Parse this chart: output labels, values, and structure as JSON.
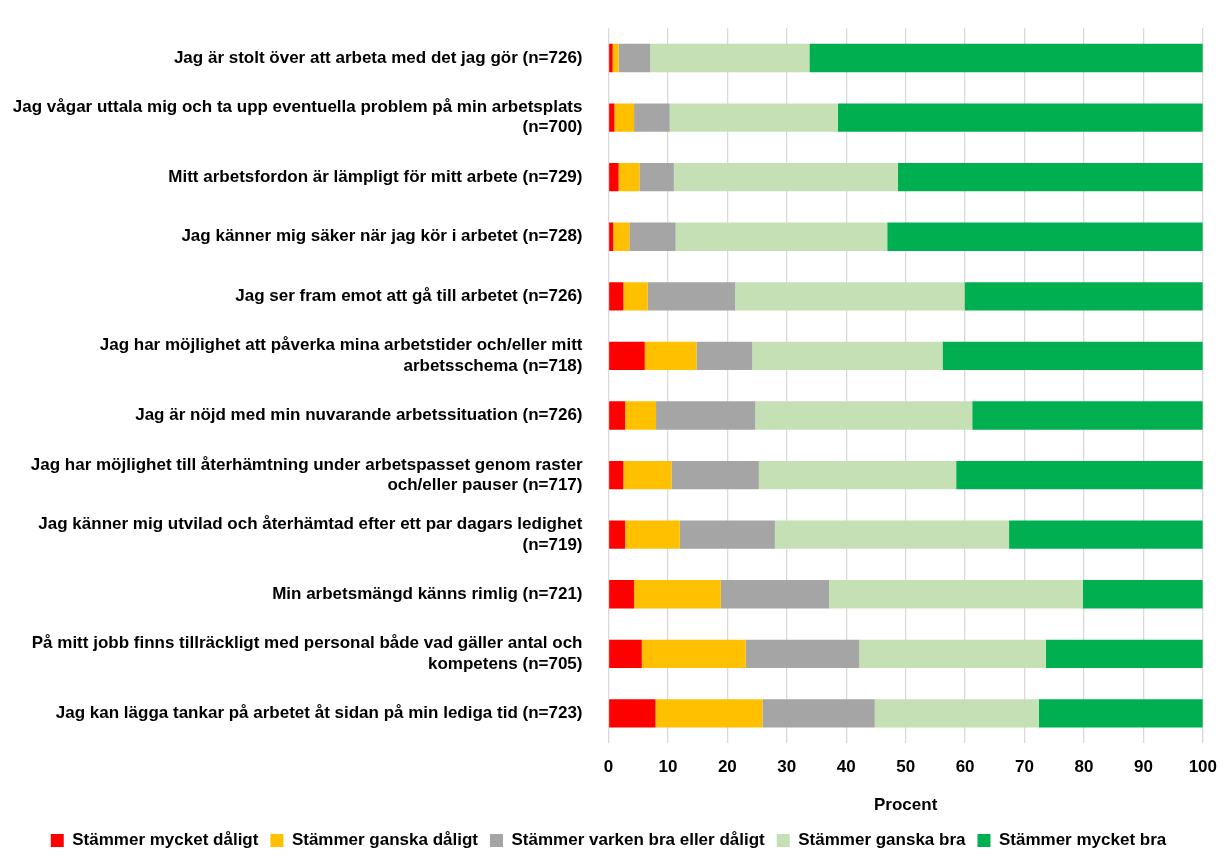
{
  "chart_data": {
    "type": "bar",
    "orientation": "horizontal",
    "stacked": true,
    "xlabel": "Procent",
    "categories": [
      "Jag är stolt över att arbeta med det jag gör (n=726)",
      "Jag vågar uttala mig och ta upp eventuella problem på min arbetsplats (n=700)",
      "Mitt arbetsfordon är lämpligt för mitt arbete (n=729)",
      "Jag känner mig säker när jag kör i arbetet (n=728)",
      "Jag ser fram emot att gå till arbetet (n=726)",
      "Jag har möjlighet att påverka mina arbetstider och/eller mitt arbetsschema (n=718)",
      "Jag är nöjd med min nuvarande arbetssituation (n=726)",
      "Jag har möjlighet till återhämtning under arbetspasset genom raster och/eller pauser (n=717)",
      "Jag känner mig utvilad och återhämtad efter ett par dagars ledighet (n=719)",
      "Min arbetsmängd känns rimlig (n=721)",
      "På mitt jobb finns tillräckligt med personal både vad gäller antal och kompetens (n=705)",
      "Jag kan lägga tankar på arbetet åt sidan på min lediga tid (n=723)"
    ],
    "series": [
      {
        "name": "Stämmer mycket dåligt",
        "color": "#ff0000",
        "values": [
          0.7,
          1.0,
          1.7,
          0.8,
          2.5,
          6.1,
          2.8,
          2.5,
          2.8,
          4.3,
          5.6,
          7.9
        ]
      },
      {
        "name": "Stämmer ganska dåligt",
        "color": "#ffc000",
        "values": [
          1.0,
          3.3,
          3.5,
          2.7,
          4.1,
          8.7,
          5.2,
          8.1,
          9.2,
          14.6,
          17.5,
          18.0
        ]
      },
      {
        "name": "Stämmer varken bra eller dåligt",
        "color": "#a5a5a5",
        "values": [
          5.3,
          6.0,
          5.8,
          7.8,
          14.7,
          9.4,
          16.7,
          14.7,
          16.0,
          18.2,
          19.1,
          18.9
        ]
      },
      {
        "name": "Stämmer ganska bra",
        "color": "#c5e0b4",
        "values": [
          26.8,
          28.3,
          37.7,
          35.6,
          38.6,
          32.0,
          36.5,
          33.2,
          39.4,
          42.7,
          31.4,
          27.6
        ]
      },
      {
        "name": "Stämmer mycket bra",
        "color": "#00b050",
        "values": [
          66.2,
          61.4,
          51.3,
          53.1,
          40.1,
          43.8,
          38.8,
          41.5,
          32.6,
          20.2,
          26.4,
          27.6
        ]
      }
    ],
    "xlim": [
      0,
      100
    ],
    "xticks": [
      0,
      10,
      20,
      30,
      40,
      50,
      60,
      70,
      80,
      90,
      100
    ],
    "grid": "x",
    "legend": "bottom"
  }
}
